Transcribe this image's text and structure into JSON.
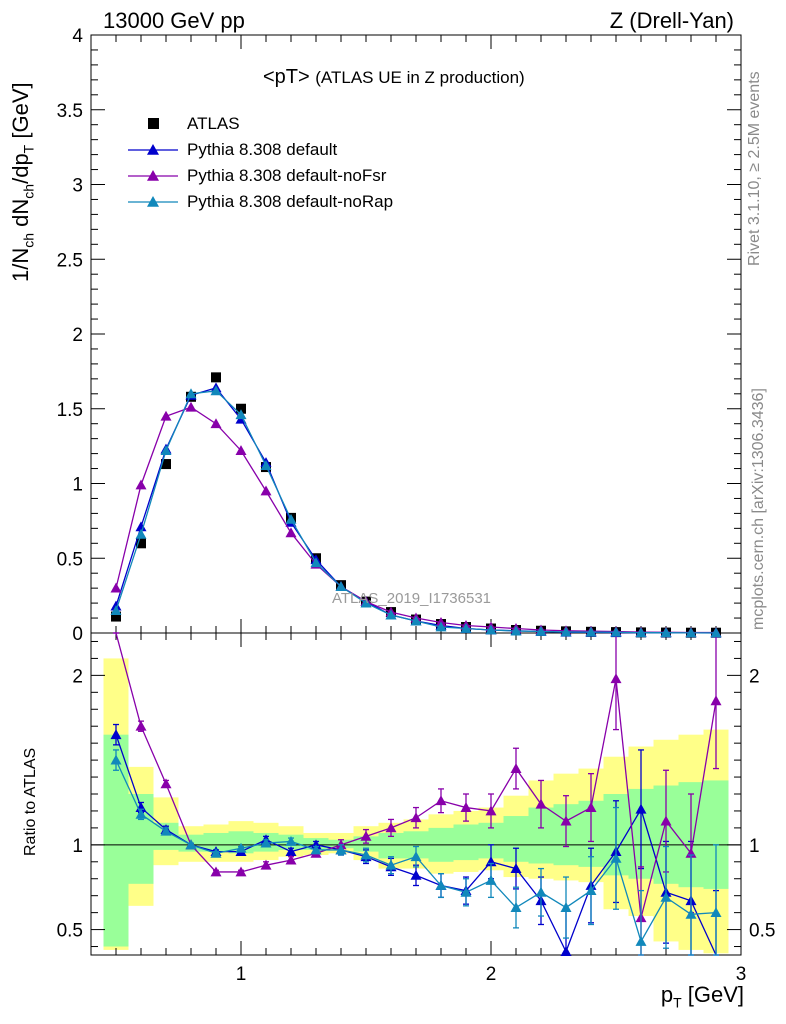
{
  "header": {
    "left": "13000 GeV pp",
    "right": "Z (Drell-Yan)"
  },
  "side_labels": {
    "rivet": "Rivet 3.1.10, ≥ 2.5M events",
    "mcplots": "mcplots.cern.ch [arXiv:1306.3436]"
  },
  "chart_data": {
    "type": "scatter",
    "title_main": "<pT>",
    "title_sub": "(ATLAS UE in Z production)",
    "watermark": "ATLAS_2019_I1736531",
    "xlabel": "p_T [GeV]",
    "ylabel": "1/N_ch dN_ch/dp_T [GeV]",
    "ratio_ylabel": "Ratio to ATLAS",
    "xlim": [
      0.4,
      3.0
    ],
    "ylim": [
      0,
      4
    ],
    "ratio_ylim": [
      0.35,
      2.25
    ],
    "x_ticks": [
      "1",
      "2",
      "3"
    ],
    "y_ticks": [
      "0",
      "0.5",
      "1",
      "1.5",
      "2",
      "2.5",
      "3",
      "3.5",
      "4"
    ],
    "ratio_ticks": [
      "0.5",
      "1",
      "2"
    ],
    "legend_position": "top-left",
    "x": [
      0.5,
      0.6,
      0.7,
      0.8,
      0.9,
      1.0,
      1.1,
      1.2,
      1.3,
      1.4,
      1.5,
      1.6,
      1.7,
      1.8,
      1.9,
      2.0,
      2.1,
      2.2,
      2.3,
      2.4,
      2.5,
      2.6,
      2.7,
      2.8,
      2.9
    ],
    "series": [
      {
        "name": "ATLAS",
        "color": "#000000",
        "marker": "square",
        "values": [
          0.11,
          0.6,
          1.13,
          1.58,
          1.71,
          1.5,
          1.11,
          0.77,
          0.5,
          0.32,
          0.21,
          0.14,
          0.09,
          0.06,
          0.04,
          0.03,
          0.02,
          0.015,
          0.011,
          0.008,
          0.006,
          0.004,
          0.003,
          0.002,
          0.002
        ],
        "band_yellow": [
          [
            0.38,
            2.1
          ],
          [
            0.64,
            1.46
          ],
          [
            0.88,
            1.28
          ],
          [
            0.9,
            1.11
          ],
          [
            0.9,
            1.12
          ],
          [
            0.9,
            1.14
          ],
          [
            0.91,
            1.13
          ],
          [
            0.93,
            1.11
          ],
          [
            0.94,
            1.07
          ],
          [
            0.95,
            1.07
          ],
          [
            0.91,
            1.11
          ],
          [
            0.86,
            1.13
          ],
          [
            0.86,
            1.15
          ],
          [
            0.83,
            1.18
          ],
          [
            0.84,
            1.2
          ],
          [
            0.85,
            1.22
          ],
          [
            0.81,
            1.29
          ],
          [
            0.8,
            1.38
          ],
          [
            0.79,
            1.42
          ],
          [
            0.78,
            1.45
          ],
          [
            0.62,
            1.52
          ],
          [
            0.58,
            1.58
          ],
          [
            0.43,
            1.62
          ],
          [
            0.38,
            1.65
          ],
          [
            0.36,
            1.68
          ]
        ],
        "band_green": [
          [
            0.4,
            1.65
          ],
          [
            0.77,
            1.3
          ],
          [
            0.97,
            1.13
          ],
          [
            0.96,
            1.06
          ],
          [
            0.96,
            1.07
          ],
          [
            0.95,
            1.08
          ],
          [
            0.96,
            1.07
          ],
          [
            0.97,
            1.06
          ],
          [
            0.97,
            1.04
          ],
          [
            0.98,
            1.03
          ],
          [
            0.96,
            1.05
          ],
          [
            0.92,
            1.07
          ],
          [
            0.92,
            1.08
          ],
          [
            0.9,
            1.1
          ],
          [
            0.91,
            1.12
          ],
          [
            0.92,
            1.13
          ],
          [
            0.9,
            1.17
          ],
          [
            0.89,
            1.22
          ],
          [
            0.88,
            1.24
          ],
          [
            0.87,
            1.26
          ],
          [
            0.82,
            1.3
          ],
          [
            0.8,
            1.33
          ],
          [
            0.77,
            1.35
          ],
          [
            0.75,
            1.37
          ],
          [
            0.74,
            1.38
          ]
        ]
      },
      {
        "name": "Pythia 8.308 default",
        "color": "#0000cc",
        "marker": "triangle",
        "values": [
          0.18,
          0.71,
          1.23,
          1.59,
          1.64,
          1.43,
          1.14,
          0.74,
          0.49,
          0.31,
          0.21,
          0.12,
          0.08,
          0.05,
          0.03,
          0.02,
          0.015,
          0.01,
          0.005,
          0.004,
          0.003,
          0.002,
          0.001,
          0.001,
          0.0005
        ],
        "ratio": [
          1.65,
          1.22,
          1.09,
          1.0,
          0.96,
          0.96,
          1.03,
          0.96,
          1.0,
          0.97,
          0.93,
          0.87,
          0.82,
          0.76,
          0.73,
          0.9,
          0.86,
          0.67,
          0.37,
          0.76,
          0.96,
          1.21,
          0.72,
          0.67,
          0.33
        ],
        "ratio_err": [
          0.06,
          0.03,
          0.02,
          0.01,
          0.01,
          0.01,
          0.02,
          0.02,
          0.02,
          0.03,
          0.04,
          0.05,
          0.06,
          0.07,
          0.08,
          0.1,
          0.12,
          0.14,
          0.25,
          0.22,
          0.3,
          0.35,
          0.3,
          0.35,
          0.4
        ]
      },
      {
        "name": "Pythia 8.308 default-noFsr",
        "color": "#8800aa",
        "marker": "triangle",
        "values": [
          0.3,
          0.99,
          1.45,
          1.51,
          1.4,
          1.22,
          0.95,
          0.67,
          0.46,
          0.31,
          0.21,
          0.14,
          0.1,
          0.07,
          0.05,
          0.04,
          0.03,
          0.02,
          0.015,
          0.012,
          0.01,
          0.006,
          0.005,
          0.003,
          0.003
        ],
        "ratio": [
          2.4,
          1.7,
          1.36,
          1.0,
          0.84,
          0.84,
          0.88,
          0.91,
          0.95,
          1.0,
          1.05,
          1.1,
          1.16,
          1.26,
          1.22,
          1.2,
          1.45,
          1.24,
          1.14,
          1.22,
          1.98,
          0.57,
          1.14,
          0.95,
          1.85
        ],
        "ratio_err": [
          0.08,
          0.03,
          0.02,
          0.01,
          0.01,
          0.01,
          0.02,
          0.02,
          0.02,
          0.03,
          0.04,
          0.05,
          0.06,
          0.07,
          0.08,
          0.1,
          0.12,
          0.14,
          0.15,
          0.2,
          0.3,
          0.3,
          0.3,
          0.35,
          0.4
        ]
      },
      {
        "name": "Pythia 8.308 default-noRap",
        "color": "#1188bb",
        "marker": "triangle",
        "values": [
          0.15,
          0.66,
          1.22,
          1.6,
          1.62,
          1.46,
          1.12,
          0.76,
          0.47,
          0.31,
          0.2,
          0.12,
          0.08,
          0.04,
          0.03,
          0.02,
          0.013,
          0.01,
          0.007,
          0.006,
          0.005,
          0.002,
          0.002,
          0.001,
          0.001
        ],
        "ratio": [
          1.5,
          1.18,
          1.08,
          1.0,
          0.95,
          0.98,
          1.01,
          1.02,
          0.97,
          0.97,
          0.94,
          0.88,
          0.93,
          0.76,
          0.72,
          0.79,
          0.63,
          0.72,
          0.63,
          0.73,
          0.92,
          0.43,
          0.69,
          0.59,
          0.6
        ],
        "ratio_err": [
          0.06,
          0.03,
          0.02,
          0.01,
          0.01,
          0.01,
          0.02,
          0.02,
          0.02,
          0.03,
          0.04,
          0.05,
          0.06,
          0.07,
          0.08,
          0.1,
          0.12,
          0.14,
          0.18,
          0.2,
          0.3,
          0.3,
          0.3,
          0.35,
          0.4
        ]
      }
    ]
  }
}
